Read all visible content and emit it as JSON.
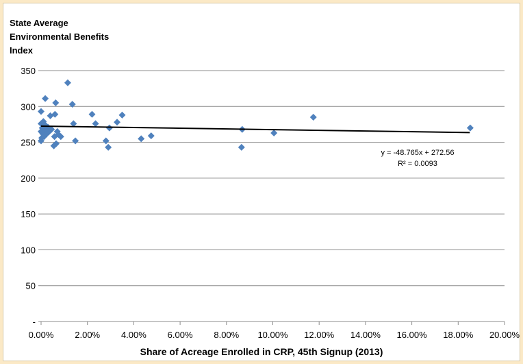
{
  "chart_data": {
    "type": "scatter",
    "title": "",
    "ylabel": "State Average Environmental Benefits Index",
    "xlabel": "Share of Acreage Enrolled in CRP, 45th Signup (2013)",
    "xlim": [
      0,
      0.2
    ],
    "ylim": [
      0,
      350
    ],
    "x_ticks": [
      "0.00%",
      "2.00%",
      "4.00%",
      "6.00%",
      "8.00%",
      "10.00%",
      "12.00%",
      "14.00%",
      "16.00%",
      "18.00%",
      "20.00%"
    ],
    "y_ticks": [
      "-",
      "50",
      "100",
      "150",
      "200",
      "250",
      "300",
      "350"
    ],
    "grid": "horizontal",
    "marker_color": "#4f81bd",
    "trendline_color": "#000000",
    "trendline": {
      "slope": -48.765,
      "intercept": 272.56
    },
    "annotation": {
      "equation": "y = -48.765x + 272.56",
      "r2": "R² = 0.0093"
    },
    "points": [
      {
        "x": 0.0,
        "y": 293
      },
      {
        "x": 0.0,
        "y": 276
      },
      {
        "x": 0.0,
        "y": 265
      },
      {
        "x": 0.0,
        "y": 252
      },
      {
        "x": 0.0003,
        "y": 256
      },
      {
        "x": 0.0005,
        "y": 270
      },
      {
        "x": 0.0007,
        "y": 262
      },
      {
        "x": 0.001,
        "y": 279
      },
      {
        "x": 0.001,
        "y": 264
      },
      {
        "x": 0.0013,
        "y": 258
      },
      {
        "x": 0.0015,
        "y": 275
      },
      {
        "x": 0.0018,
        "y": 311
      },
      {
        "x": 0.002,
        "y": 266
      },
      {
        "x": 0.0025,
        "y": 262
      },
      {
        "x": 0.003,
        "y": 271
      },
      {
        "x": 0.0035,
        "y": 265
      },
      {
        "x": 0.004,
        "y": 287
      },
      {
        "x": 0.0045,
        "y": 268
      },
      {
        "x": 0.0055,
        "y": 245
      },
      {
        "x": 0.0058,
        "y": 258
      },
      {
        "x": 0.006,
        "y": 289
      },
      {
        "x": 0.0063,
        "y": 305
      },
      {
        "x": 0.0065,
        "y": 248
      },
      {
        "x": 0.007,
        "y": 265
      },
      {
        "x": 0.0075,
        "y": 261
      },
      {
        "x": 0.0085,
        "y": 258
      },
      {
        "x": 0.0115,
        "y": 333
      },
      {
        "x": 0.0135,
        "y": 303
      },
      {
        "x": 0.014,
        "y": 276
      },
      {
        "x": 0.0148,
        "y": 252
      },
      {
        "x": 0.022,
        "y": 289
      },
      {
        "x": 0.0235,
        "y": 276
      },
      {
        "x": 0.028,
        "y": 252
      },
      {
        "x": 0.029,
        "y": 243
      },
      {
        "x": 0.0295,
        "y": 270
      },
      {
        "x": 0.0328,
        "y": 278
      },
      {
        "x": 0.035,
        "y": 288
      },
      {
        "x": 0.0432,
        "y": 255
      },
      {
        "x": 0.0475,
        "y": 259
      },
      {
        "x": 0.0865,
        "y": 243
      },
      {
        "x": 0.0868,
        "y": 268
      },
      {
        "x": 0.1005,
        "y": 263
      },
      {
        "x": 0.1175,
        "y": 285
      },
      {
        "x": 0.1852,
        "y": 270
      }
    ]
  }
}
